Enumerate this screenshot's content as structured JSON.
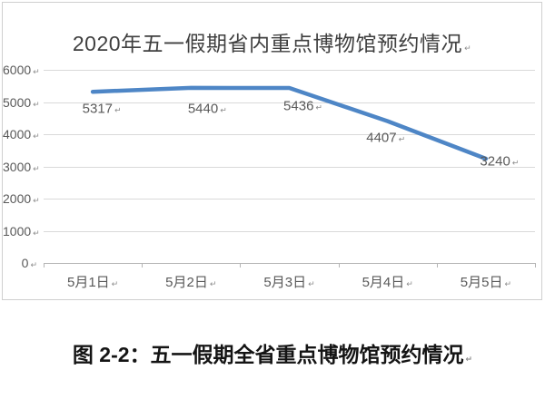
{
  "chart_data": {
    "type": "line",
    "title": "2020年五一假期省内重点博物馆预约情况",
    "categories": [
      "5月1日",
      "5月2日",
      "5月3日",
      "5月4日",
      "5月5日"
    ],
    "values": [
      5317,
      5440,
      5436,
      4407,
      3240
    ],
    "data_labels": [
      "5317",
      "5440",
      "5436",
      "4407",
      "3240"
    ],
    "y_ticks": [
      0,
      1000,
      2000,
      3000,
      4000,
      5000,
      6000
    ],
    "ylim": [
      0,
      6000
    ],
    "grid": true,
    "legend": "none",
    "line_color": "#4e86c6",
    "label_color": "#595959",
    "title_color": "#3f3f3f",
    "gridline_color": "#d9d9d9",
    "axis_color": "#b5b5b5",
    "format_mark": "↵"
  },
  "caption": {
    "text": "图 2-2：五一假期全省重点博物馆预约情况",
    "mark": "↵"
  }
}
